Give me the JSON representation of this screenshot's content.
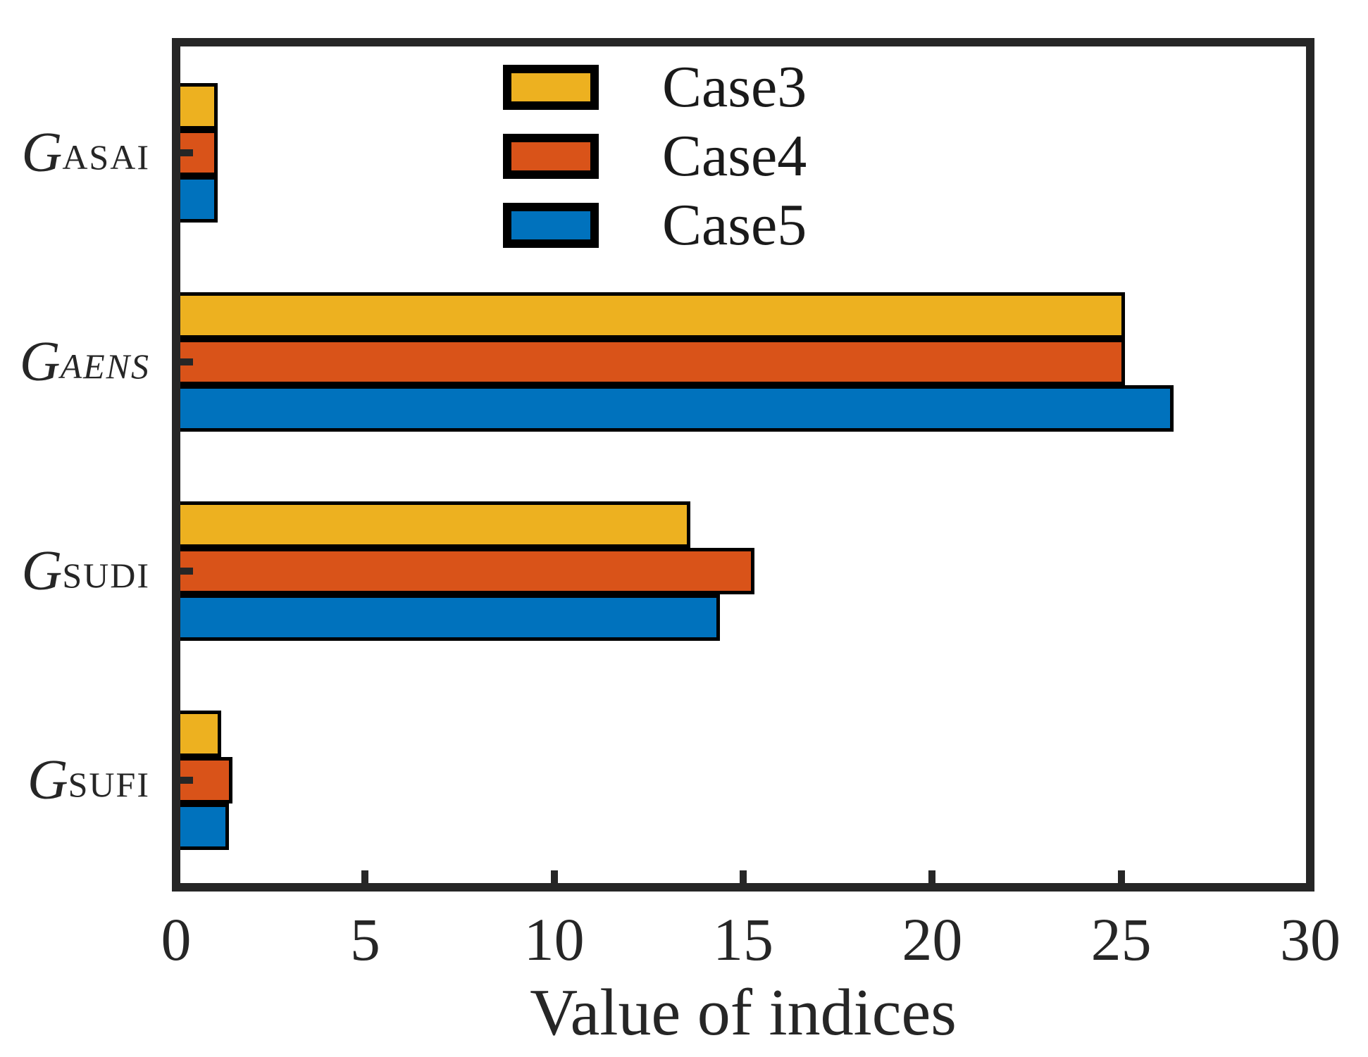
{
  "figure": {
    "background": "#ffffff",
    "axis_color": "#262626",
    "bar_border_color": "#000000"
  },
  "chart_data": {
    "type": "bar",
    "orientation": "horizontal",
    "title": "",
    "xlabel": "Value of indices",
    "ylabel": "",
    "xlim": [
      0,
      30
    ],
    "xticks": [
      0,
      5,
      10,
      15,
      20,
      25,
      30
    ],
    "grid": false,
    "legend_position": "top-center-inside",
    "categories": [
      {
        "label": "GASAI",
        "base": "G",
        "sub": "ASAI",
        "sub_italic": false
      },
      {
        "label": "GAENS",
        "base": "G",
        "sub": "AENS",
        "sub_italic": true
      },
      {
        "label": "GSUDI",
        "base": "G",
        "sub": "SUDI",
        "sub_italic": false
      },
      {
        "label": "GSUFI",
        "base": "G",
        "sub": "SUFI",
        "sub_italic": false
      }
    ],
    "series": [
      {
        "name": "Case3",
        "color": "#EDB120",
        "values": [
          1.0,
          25.0,
          13.5,
          1.1
        ]
      },
      {
        "name": "Case4",
        "color": "#D95319",
        "values": [
          1.0,
          25.0,
          15.2,
          1.4
        ]
      },
      {
        "name": "Case5",
        "color": "#0072BD",
        "values": [
          1.0,
          26.3,
          14.3,
          1.3
        ]
      }
    ]
  }
}
